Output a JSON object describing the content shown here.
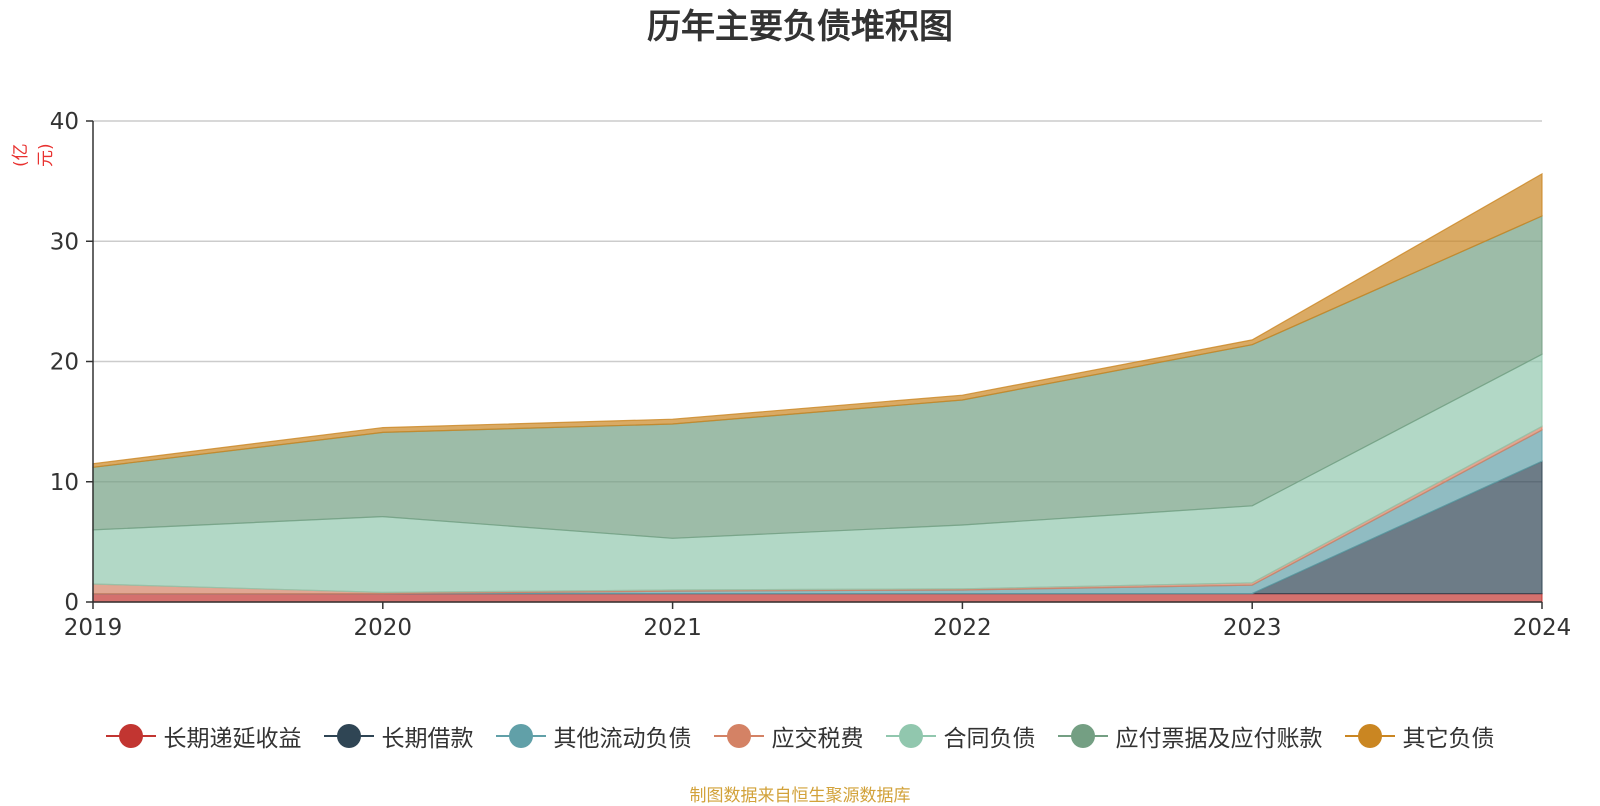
{
  "chart_data": {
    "type": "area",
    "stacked": true,
    "title": "历年主要负债堆积图",
    "ylabel": "(亿元)",
    "categories": [
      "2019",
      "2020",
      "2021",
      "2022",
      "2023",
      "2024"
    ],
    "ylim": [
      0,
      40
    ],
    "yticks": [
      "0",
      "10",
      "20",
      "30",
      "40"
    ],
    "grid": true,
    "legend_position": "bottom",
    "series": [
      {
        "name": "长期递延收益",
        "color": "#c23531",
        "values": [
          0.7,
          0.7,
          0.7,
          0.7,
          0.7,
          0.7
        ]
      },
      {
        "name": "长期借款",
        "color": "#2f4554",
        "values": [
          0.0,
          0.0,
          0.0,
          0.0,
          0.0,
          11.0
        ]
      },
      {
        "name": "其他流动负债",
        "color": "#61a0a8",
        "values": [
          0.0,
          0.0,
          0.2,
          0.3,
          0.7,
          2.6
        ]
      },
      {
        "name": "应交税费",
        "color": "#d48265",
        "values": [
          0.8,
          0.1,
          0.1,
          0.1,
          0.2,
          0.3
        ]
      },
      {
        "name": "合同负债",
        "color": "#91c7ae",
        "values": [
          4.5,
          6.3,
          4.3,
          5.3,
          6.4,
          6.0
        ]
      },
      {
        "name": "应付票据及应付账款",
        "color": "#749f83",
        "values": [
          5.2,
          7.0,
          9.5,
          10.4,
          13.4,
          11.5
        ]
      },
      {
        "name": "其它负债",
        "color": "#ca8622",
        "values": [
          0.3,
          0.4,
          0.4,
          0.4,
          0.4,
          3.5
        ]
      }
    ]
  },
  "source": "制图数据来自恒生聚源数据库"
}
